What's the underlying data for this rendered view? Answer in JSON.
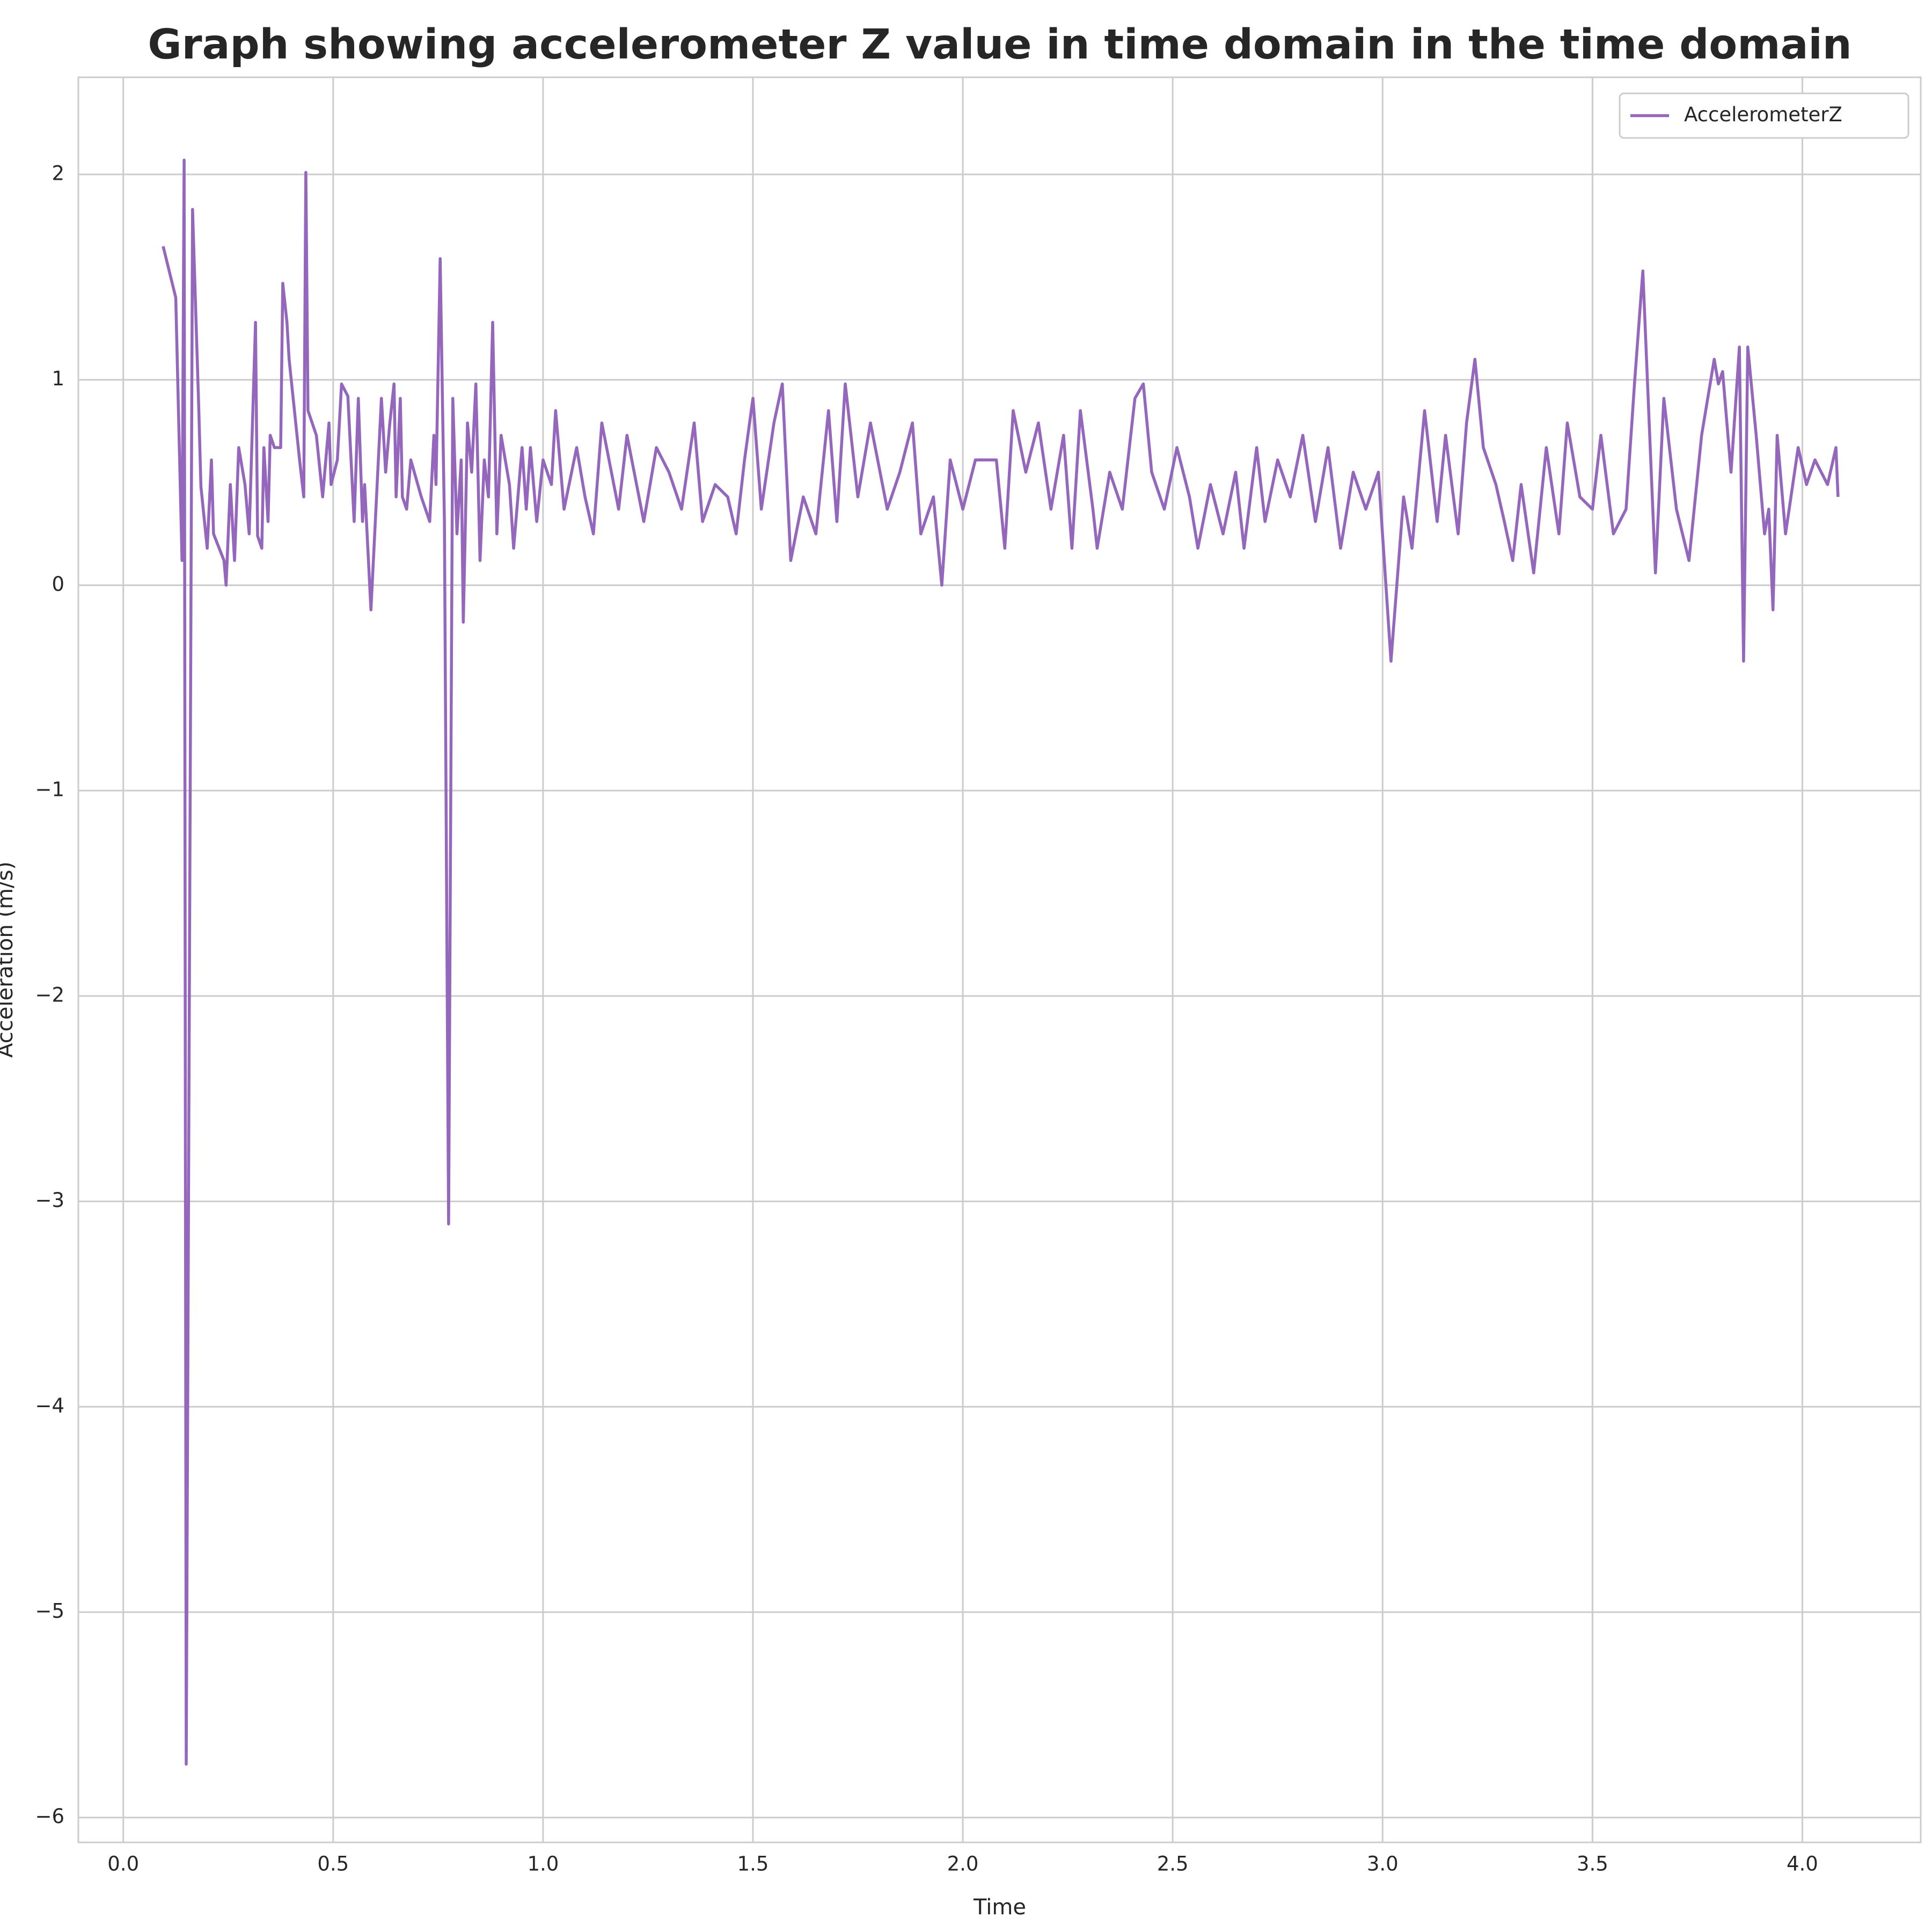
{
  "chart_data": {
    "type": "line",
    "title": "Graph showing accelerometer Z value in time domain in the time domain",
    "xlabel": "Time",
    "ylabel": "Acceleration (m/s)",
    "legend": "upper right",
    "grid": true,
    "xlim": [
      -0.107,
      4.282
    ],
    "ylim": [
      -6.121,
      2.473
    ],
    "xticks": [
      {
        "value": 0,
        "label": "0.0"
      },
      {
        "value": 0.5,
        "label": "0.5"
      },
      {
        "value": 1,
        "label": "1.0"
      },
      {
        "value": 1.5,
        "label": "1.5"
      },
      {
        "value": 2,
        "label": "2.0"
      },
      {
        "value": 2.5,
        "label": "2.5"
      },
      {
        "value": 3,
        "label": "3.0"
      },
      {
        "value": 3.5,
        "label": "3.5"
      },
      {
        "value": 4,
        "label": "4.0"
      }
    ],
    "yticks": [
      {
        "value": -6,
        "label": "−6"
      },
      {
        "value": -5,
        "label": "−5"
      },
      {
        "value": -4,
        "label": "−4"
      },
      {
        "value": -3,
        "label": "−3"
      },
      {
        "value": -2,
        "label": "−2"
      },
      {
        "value": -1,
        "label": "−1"
      },
      0,
      1,
      2
    ],
    "x": [
      0.095,
      0.125,
      0.14,
      0.145,
      0.15,
      0.165,
      0.18,
      0.185,
      0.2,
      0.21,
      0.215,
      0.24,
      0.245,
      0.255,
      0.265,
      0.275,
      0.29,
      0.3,
      0.315,
      0.32,
      0.33,
      0.335,
      0.345,
      0.35,
      0.36,
      0.375,
      0.38,
      0.39,
      0.395,
      0.42,
      0.43,
      0.435,
      0.44,
      0.46,
      0.475,
      0.49,
      0.495,
      0.51,
      0.52,
      0.535,
      0.55,
      0.56,
      0.57,
      0.575,
      0.59,
      0.615,
      0.625,
      0.635,
      0.645,
      0.65,
      0.66,
      0.665,
      0.675,
      0.685,
      0.71,
      0.72,
      0.73,
      0.74,
      0.745,
      0.755,
      0.765,
      0.775,
      0.785,
      0.795,
      0.805,
      0.81,
      0.82,
      0.83,
      0.84,
      0.85,
      0.86,
      0.87,
      0.88,
      0.89,
      0.9,
      0.91,
      0.92,
      0.93,
      0.945,
      0.95,
      0.96,
      0.97,
      0.985,
      1.0,
      1.02,
      1.03,
      1.05,
      1.08,
      1.1,
      1.12,
      1.14,
      1.18,
      1.2,
      1.24,
      1.27,
      1.3,
      1.33,
      1.36,
      1.38,
      1.41,
      1.44,
      1.46,
      1.48,
      1.5,
      1.52,
      1.55,
      1.57,
      1.59,
      1.62,
      1.65,
      1.68,
      1.7,
      1.72,
      1.75,
      1.78,
      1.82,
      1.85,
      1.88,
      1.9,
      1.93,
      1.95,
      1.97,
      2.0,
      2.03,
      2.08,
      2.1,
      2.12,
      2.15,
      2.18,
      2.21,
      2.24,
      2.26,
      2.28,
      2.31,
      2.32,
      2.35,
      2.38,
      2.41,
      2.43,
      2.45,
      2.48,
      2.51,
      2.54,
      2.56,
      2.59,
      2.62,
      2.65,
      2.67,
      2.7,
      2.72,
      2.75,
      2.78,
      2.81,
      2.84,
      2.87,
      2.9,
      2.93,
      2.96,
      2.99,
      3.02,
      3.05,
      3.07,
      3.1,
      3.13,
      3.15,
      3.18,
      3.2,
      3.22,
      3.24,
      3.27,
      3.29,
      3.31,
      3.33,
      3.36,
      3.39,
      3.42,
      3.44,
      3.47,
      3.5,
      3.52,
      3.55,
      3.58,
      3.6,
      3.62,
      3.65,
      3.67,
      3.7,
      3.73,
      3.76,
      3.79,
      3.8,
      3.81,
      3.83,
      3.85,
      3.86,
      3.87,
      3.89,
      3.91,
      3.92,
      3.93,
      3.94,
      3.96,
      3.99,
      4.01,
      4.03,
      4.06,
      4.08,
      4.085
    ],
    "series": [
      {
        "name": "AccelerometerZ",
        "color": "#9467bd",
        "values": [
          1.65,
          1.4,
          0.12,
          2.07,
          -5.74,
          1.83,
          0.85,
          0.48,
          0.18,
          0.61,
          0.25,
          0.12,
          0,
          0.49,
          0.12,
          0.67,
          0.49,
          0.25,
          1.28,
          0.24,
          0.18,
          0.67,
          0.31,
          0.73,
          0.67,
          0.67,
          1.47,
          1.28,
          1.1,
          0.61,
          0.43,
          2.01,
          0.85,
          0.73,
          0.43,
          0.79,
          0.49,
          0.61,
          0.98,
          0.92,
          0.31,
          0.91,
          0.31,
          0.49,
          -0.12,
          0.91,
          0.55,
          0.79,
          0.98,
          0.43,
          0.91,
          0.43,
          0.37,
          0.61,
          0.43,
          0.37,
          0.31,
          0.73,
          0.49,
          1.59,
          0.31,
          -3.11,
          0.91,
          0.25,
          0.61,
          -0.18,
          0.79,
          0.55,
          0.98,
          0.12,
          0.61,
          0.43,
          1.28,
          0.25,
          0.73,
          0.61,
          0.49,
          0.18,
          0.55,
          0.67,
          0.37,
          0.67,
          0.31,
          0.61,
          0.49,
          0.85,
          0.37,
          0.67,
          0.43,
          0.25,
          0.79,
          0.37,
          0.73,
          0.31,
          0.67,
          0.55,
          0.37,
          0.79,
          0.31,
          0.49,
          0.43,
          0.25,
          0.61,
          0.91,
          0.37,
          0.79,
          0.98,
          0.12,
          0.43,
          0.25,
          0.85,
          0.31,
          0.98,
          0.43,
          0.79,
          0.37,
          0.55,
          0.79,
          0.25,
          0.43,
          0,
          0.61,
          0.37,
          0.61,
          0.61,
          0.18,
          0.85,
          0.55,
          0.79,
          0.37,
          0.73,
          0.18,
          0.85,
          0.37,
          0.18,
          0.55,
          0.37,
          0.91,
          0.98,
          0.55,
          0.37,
          0.67,
          0.43,
          0.18,
          0.49,
          0.25,
          0.55,
          0.18,
          0.67,
          0.31,
          0.61,
          0.43,
          0.73,
          0.31,
          0.67,
          0.18,
          0.55,
          0.37,
          0.55,
          -0.37,
          0.43,
          0.18,
          0.85,
          0.31,
          0.73,
          0.25,
          0.79,
          1.1,
          0.67,
          0.49,
          0.31,
          0.12,
          0.49,
          0.06,
          0.67,
          0.25,
          0.79,
          0.43,
          0.37,
          0.73,
          0.25,
          0.37,
          0.98,
          1.53,
          0.06,
          0.91,
          0.37,
          0.12,
          0.73,
          1.1,
          0.98,
          1.04,
          0.55,
          1.16,
          -0.37,
          1.16,
          0.73,
          0.25,
          0.37,
          -0.12,
          0.73,
          0.25,
          0.67,
          0.49,
          0.61,
          0.49,
          0.67,
          0.43
        ]
      }
    ]
  }
}
